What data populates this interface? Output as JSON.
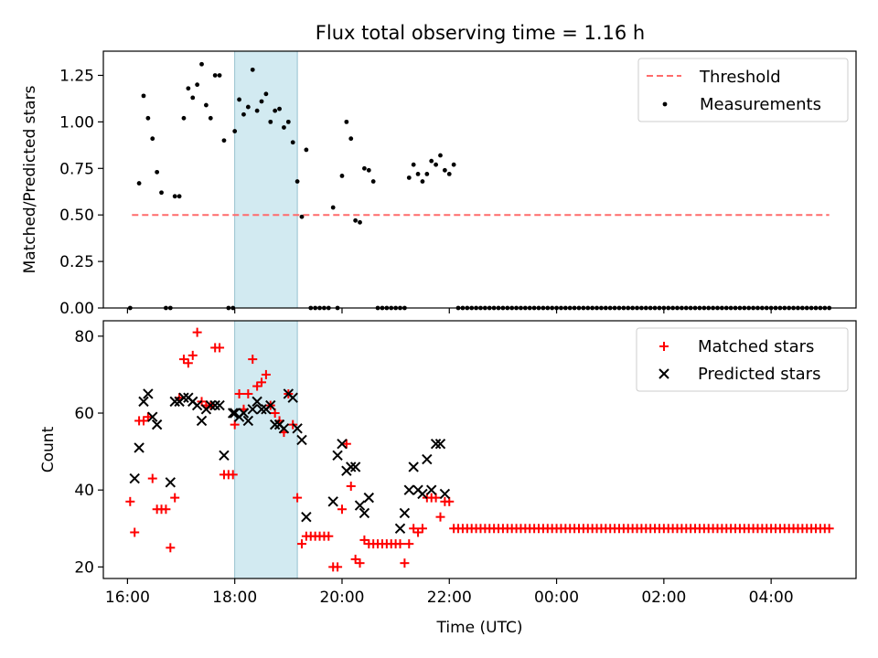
{
  "title": "Flux total observing time = 1.16 h",
  "colors": {
    "threshold": "#ff6b6b",
    "matched": "#ff0000",
    "predicted": "#000000",
    "highlight": "#add8e6",
    "measure": "#000000"
  },
  "chart_data": [
    {
      "type": "scatter",
      "panel": "top",
      "ylabel": "Matched/Predicted stars",
      "ylim": [
        0,
        1.38
      ],
      "yticks": [
        "0.00",
        "0.25",
        "0.50",
        "0.75",
        "1.00",
        "1.25"
      ],
      "grid": false,
      "legend_position": "upper right",
      "legend": [
        "Threshold",
        "Measurements"
      ],
      "highlight_span": [
        "18:00",
        "19:10"
      ],
      "threshold": {
        "name": "Threshold",
        "value": 0.5,
        "x_start": "16:05",
        "x_end": "05:05"
      },
      "measurements": [
        [
          "16:03",
          0
        ],
        [
          "16:13",
          0.67
        ],
        [
          "16:18",
          1.14
        ],
        [
          "16:23",
          1.02
        ],
        [
          "16:28",
          0.91
        ],
        [
          "16:33",
          0.73
        ],
        [
          "16:38",
          0.62
        ],
        [
          "16:43",
          0
        ],
        [
          "16:48",
          0
        ],
        [
          "16:53",
          0.6
        ],
        [
          "16:58",
          0.6
        ],
        [
          "17:03",
          1.02
        ],
        [
          "17:08",
          1.18
        ],
        [
          "17:13",
          1.13
        ],
        [
          "17:18",
          1.2
        ],
        [
          "17:23",
          1.31
        ],
        [
          "17:28",
          1.09
        ],
        [
          "17:33",
          1.02
        ],
        [
          "17:38",
          1.25
        ],
        [
          "17:43",
          1.25
        ],
        [
          "17:48",
          0.9
        ],
        [
          "17:53",
          0
        ],
        [
          "17:58",
          0
        ],
        [
          "18:00",
          0.95
        ],
        [
          "18:05",
          1.12
        ],
        [
          "18:10",
          1.04
        ],
        [
          "18:15",
          1.08
        ],
        [
          "18:20",
          1.28
        ],
        [
          "18:25",
          1.06
        ],
        [
          "18:30",
          1.11
        ],
        [
          "18:35",
          1.15
        ],
        [
          "18:40",
          1.0
        ],
        [
          "18:45",
          1.06
        ],
        [
          "18:50",
          1.07
        ],
        [
          "18:55",
          0.97
        ],
        [
          "19:00",
          1.0
        ],
        [
          "19:05",
          0.89
        ],
        [
          "19:10",
          0.68
        ],
        [
          "19:15",
          0.49
        ],
        [
          "19:20",
          0.85
        ],
        [
          "19:25",
          0
        ],
        [
          "19:30",
          0
        ],
        [
          "19:35",
          0
        ],
        [
          "19:40",
          0
        ],
        [
          "19:45",
          0
        ],
        [
          "19:50",
          0.54
        ],
        [
          "19:55",
          0
        ],
        [
          "20:00",
          0.71
        ],
        [
          "20:05",
          1.0
        ],
        [
          "20:10",
          0.91
        ],
        [
          "20:15",
          0.47
        ],
        [
          "20:20",
          0.46
        ],
        [
          "20:25",
          0.75
        ],
        [
          "20:30",
          0.74
        ],
        [
          "20:35",
          0.68
        ],
        [
          "20:40",
          0
        ],
        [
          "20:45",
          0
        ],
        [
          "20:50",
          0
        ],
        [
          "20:55",
          0
        ],
        [
          "21:00",
          0
        ],
        [
          "21:05",
          0
        ],
        [
          "21:10",
          0
        ],
        [
          "21:15",
          0.7
        ],
        [
          "21:20",
          0.77
        ],
        [
          "21:25",
          0.72
        ],
        [
          "21:30",
          0.68
        ],
        [
          "21:35",
          0.72
        ],
        [
          "21:40",
          0.79
        ],
        [
          "21:45",
          0.77
        ],
        [
          "21:50",
          0.82
        ],
        [
          "21:55",
          0.74
        ],
        [
          "22:00",
          0.72
        ],
        [
          "22:05",
          0.77
        ]
      ],
      "zeros_from": "22:10",
      "zeros_to": "05:05",
      "zeros_step_minutes": 5
    },
    {
      "type": "scatter",
      "panel": "bottom",
      "xlabel": "Time (UTC)",
      "ylabel": "Count",
      "ylim": [
        17,
        84
      ],
      "yticks": [
        "20",
        "40",
        "60",
        "80"
      ],
      "xticks": [
        "16:00",
        "18:00",
        "20:00",
        "22:00",
        "00:00",
        "02:00",
        "04:00"
      ],
      "xlim": [
        "15:33",
        "05:35"
      ],
      "grid": false,
      "legend_position": "upper right",
      "legend": [
        "Matched stars",
        "Predicted stars"
      ],
      "highlight_span": [
        "18:00",
        "19:10"
      ],
      "series": [
        {
          "name": "Matched stars",
          "marker": "plus",
          "points": [
            [
              "16:03",
              37
            ],
            [
              "16:08",
              29
            ],
            [
              "16:13",
              58
            ],
            [
              "16:18",
              58
            ],
            [
              "16:23",
              59
            ],
            [
              "16:28",
              43
            ],
            [
              "16:33",
              35
            ],
            [
              "16:38",
              35
            ],
            [
              "16:43",
              35
            ],
            [
              "16:48",
              25
            ],
            [
              "16:53",
              38
            ],
            [
              "16:58",
              64
            ],
            [
              "17:03",
              74
            ],
            [
              "17:08",
              73
            ],
            [
              "17:13",
              75
            ],
            [
              "17:18",
              81
            ],
            [
              "17:23",
              63
            ],
            [
              "17:28",
              62
            ],
            [
              "17:33",
              62
            ],
            [
              "17:38",
              77
            ],
            [
              "17:43",
              77
            ],
            [
              "17:48",
              44
            ],
            [
              "17:53",
              44
            ],
            [
              "17:58",
              44
            ],
            [
              "18:00",
              57
            ],
            [
              "18:05",
              65
            ],
            [
              "18:10",
              61
            ],
            [
              "18:15",
              65
            ],
            [
              "18:20",
              74
            ],
            [
              "18:25",
              67
            ],
            [
              "18:30",
              68
            ],
            [
              "18:35",
              70
            ],
            [
              "18:40",
              62
            ],
            [
              "18:45",
              60
            ],
            [
              "18:50",
              58
            ],
            [
              "18:55",
              55
            ],
            [
              "19:00",
              65
            ],
            [
              "19:05",
              57
            ],
            [
              "19:10",
              38
            ],
            [
              "19:15",
              26
            ],
            [
              "19:20",
              28
            ],
            [
              "19:25",
              28
            ],
            [
              "19:30",
              28
            ],
            [
              "19:35",
              28
            ],
            [
              "19:40",
              28
            ],
            [
              "19:45",
              28
            ],
            [
              "19:50",
              20
            ],
            [
              "19:55",
              20
            ],
            [
              "20:00",
              35
            ],
            [
              "20:05",
              52
            ],
            [
              "20:10",
              41
            ],
            [
              "20:15",
              22
            ],
            [
              "20:20",
              21
            ],
            [
              "20:25",
              27
            ],
            [
              "20:30",
              26
            ],
            [
              "20:35",
              26
            ],
            [
              "20:40",
              26
            ],
            [
              "20:45",
              26
            ],
            [
              "20:50",
              26
            ],
            [
              "20:55",
              26
            ],
            [
              "21:00",
              26
            ],
            [
              "21:05",
              26
            ],
            [
              "21:10",
              21
            ],
            [
              "21:15",
              26
            ],
            [
              "21:20",
              30
            ],
            [
              "21:25",
              29
            ],
            [
              "21:30",
              30
            ],
            [
              "21:35",
              38
            ],
            [
              "21:40",
              38
            ],
            [
              "21:45",
              38
            ],
            [
              "21:50",
              33
            ],
            [
              "21:55",
              37
            ],
            [
              "22:00",
              37
            ]
          ],
          "constant_value": 30,
          "constant_from": "22:05",
          "constant_to": "05:05",
          "constant_step_minutes": 5
        },
        {
          "name": "Predicted stars",
          "marker": "x",
          "points": [
            [
              "16:08",
              43
            ],
            [
              "16:13",
              51
            ],
            [
              "16:18",
              63
            ],
            [
              "16:23",
              65
            ],
            [
              "16:28",
              59
            ],
            [
              "16:33",
              57
            ],
            [
              "16:48",
              42
            ],
            [
              "16:53",
              63
            ],
            [
              "16:58",
              63
            ],
            [
              "17:03",
              64
            ],
            [
              "17:08",
              64
            ],
            [
              "17:13",
              63
            ],
            [
              "17:18",
              62
            ],
            [
              "17:23",
              58
            ],
            [
              "17:28",
              61
            ],
            [
              "17:33",
              62
            ],
            [
              "17:38",
              62
            ],
            [
              "17:43",
              62
            ],
            [
              "17:48",
              49
            ],
            [
              "17:58",
              60
            ],
            [
              "18:00",
              60
            ],
            [
              "18:05",
              59
            ],
            [
              "18:10",
              60
            ],
            [
              "18:15",
              58
            ],
            [
              "18:20",
              61
            ],
            [
              "18:25",
              63
            ],
            [
              "18:30",
              61
            ],
            [
              "18:35",
              61
            ],
            [
              "18:40",
              62
            ],
            [
              "18:45",
              57
            ],
            [
              "18:50",
              57
            ],
            [
              "18:55",
              56
            ],
            [
              "19:00",
              65
            ],
            [
              "19:05",
              64
            ],
            [
              "19:10",
              56
            ],
            [
              "19:15",
              53
            ],
            [
              "19:20",
              33
            ],
            [
              "19:50",
              37
            ],
            [
              "19:55",
              49
            ],
            [
              "20:00",
              52
            ],
            [
              "20:05",
              45
            ],
            [
              "20:10",
              46
            ],
            [
              "20:15",
              46
            ],
            [
              "20:20",
              36
            ],
            [
              "20:25",
              34
            ],
            [
              "20:30",
              38
            ],
            [
              "21:05",
              30
            ],
            [
              "21:10",
              34
            ],
            [
              "21:15",
              40
            ],
            [
              "21:20",
              46
            ],
            [
              "21:25",
              40
            ],
            [
              "21:30",
              39
            ],
            [
              "21:35",
              48
            ],
            [
              "21:40",
              40
            ],
            [
              "21:45",
              52
            ],
            [
              "21:50",
              52
            ],
            [
              "21:55",
              39
            ]
          ]
        }
      ]
    }
  ]
}
